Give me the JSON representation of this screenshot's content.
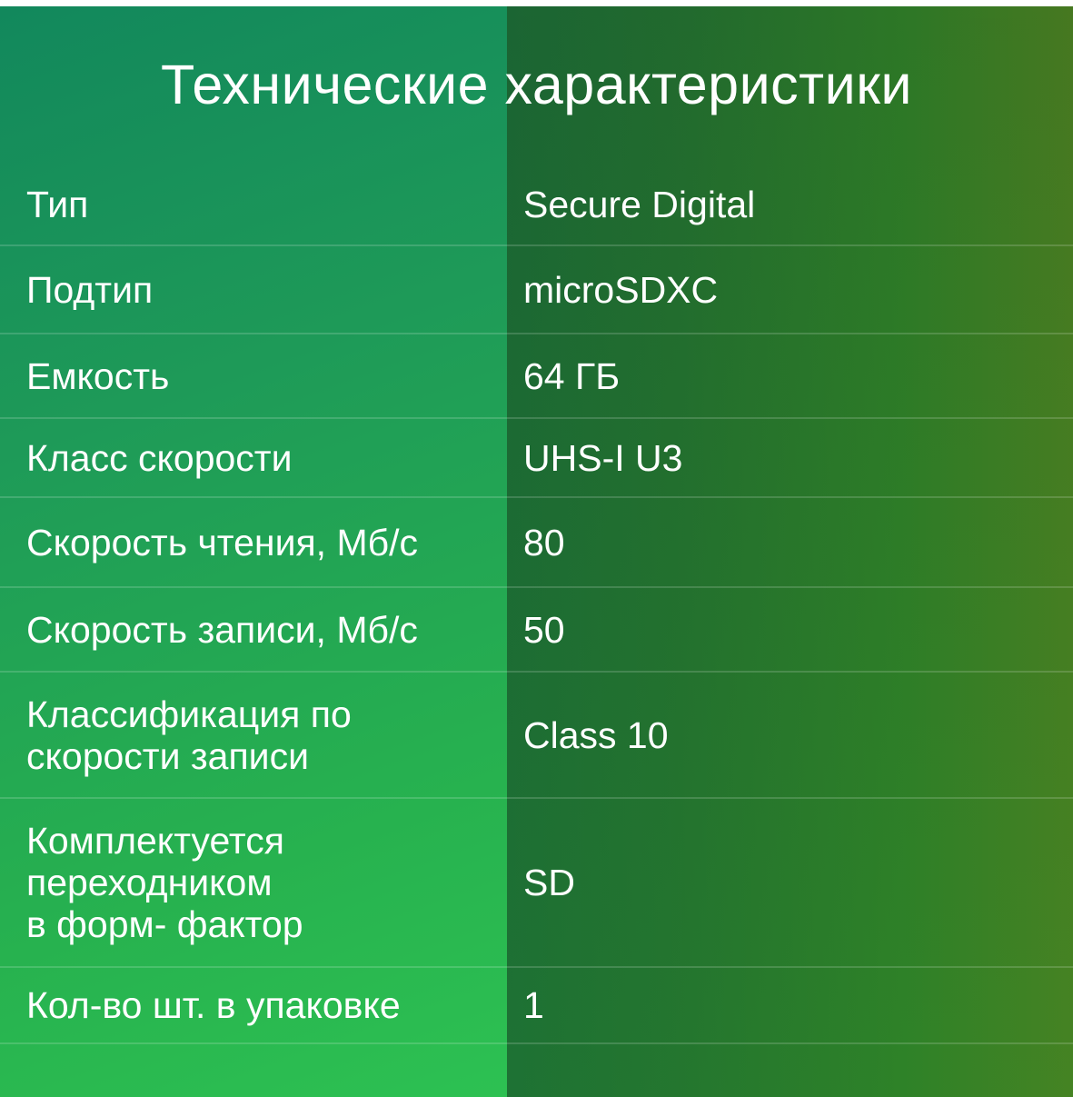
{
  "title": "Технические характеристики",
  "specs": [
    {
      "label": "Тип",
      "value": "Secure Digital"
    },
    {
      "label": "Подтип",
      "value": "microSDXC"
    },
    {
      "label": "Емкость",
      "value": "64 ГБ"
    },
    {
      "label": "Класс скорости",
      "value": "UHS-I U3"
    },
    {
      "label": "Скорость чтения, Мб/с",
      "value": "80"
    },
    {
      "label": "Скорость записи, Мб/с",
      "value": "50"
    },
    {
      "label": "Классификация по\nскорости записи",
      "value": "Class 10"
    },
    {
      "label": "Комплектуется\nпереходником\nв форм- фактор",
      "value": "SD"
    },
    {
      "label": "Кол-во шт. в упаковке",
      "value": "1"
    }
  ]
}
